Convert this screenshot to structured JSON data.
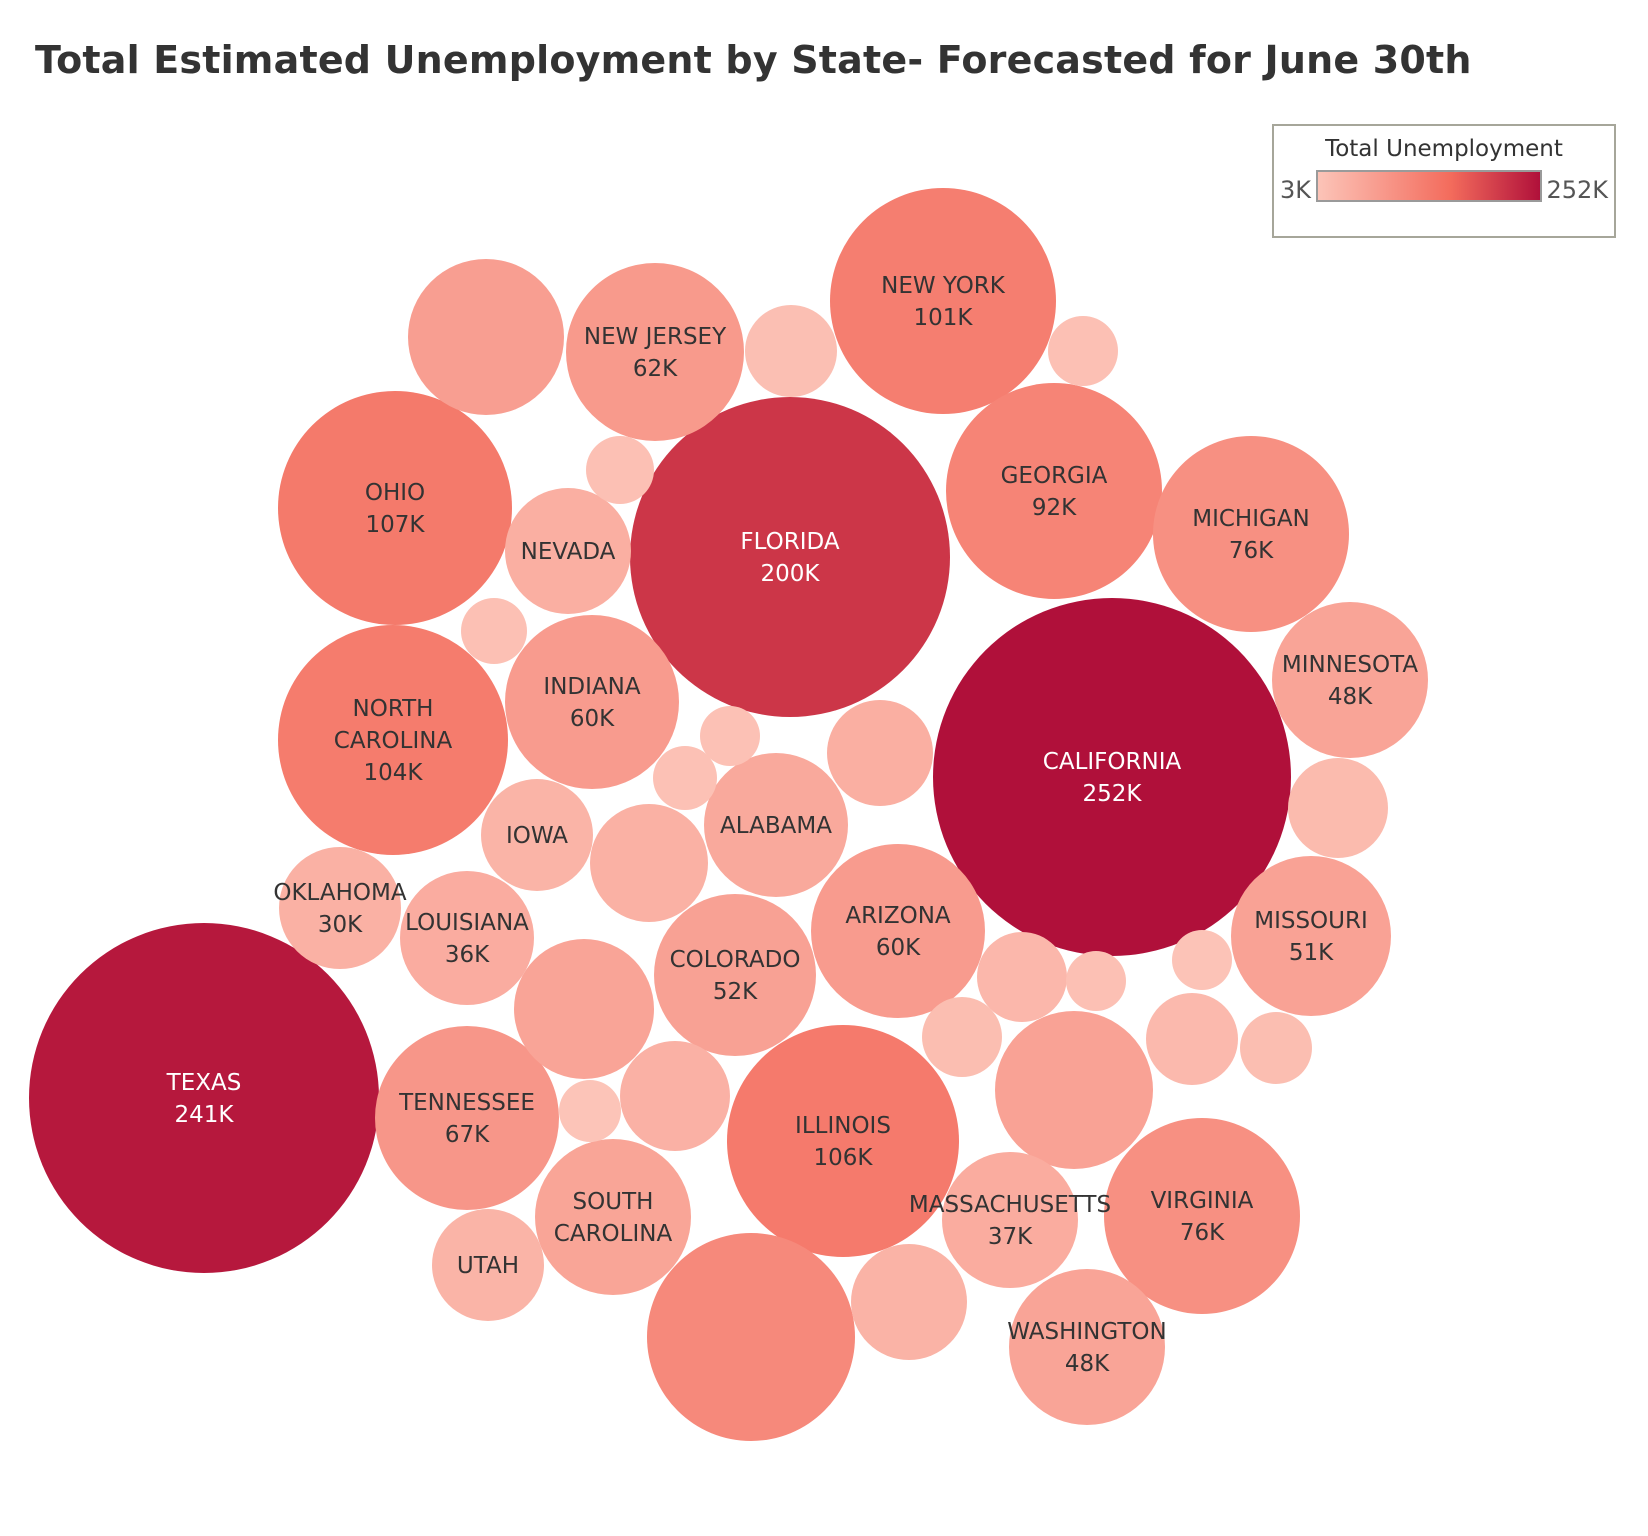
{
  "chart_data": {
    "type": "bubble",
    "title": "Total Estimated Unemployment by State- Forecasted for June 30th",
    "legend": {
      "title": "Total Unemployment",
      "min_label": "3K",
      "max_label": "252K",
      "min_value": 3,
      "max_value": 252,
      "color_low": "#fcc4b8",
      "color_mid": "#f36b5c",
      "color_high": "#b0103a",
      "placement": "top-right"
    },
    "unit": "K",
    "bubbles": [
      {
        "label": [
          "CALIFORNIA"
        ],
        "value": 252,
        "value_label": "252K"
      },
      {
        "label": [
          "TEXAS"
        ],
        "value": 241,
        "value_label": "241K"
      },
      {
        "label": [
          "FLORIDA"
        ],
        "value": 200,
        "value_label": "200K"
      },
      {
        "label": [
          "OHIO"
        ],
        "value": 107,
        "value_label": "107K"
      },
      {
        "label": [
          "ILLINOIS"
        ],
        "value": 106,
        "value_label": "106K"
      },
      {
        "label": [
          "NORTH",
          "CAROLINA"
        ],
        "value": 104,
        "value_label": "104K"
      },
      {
        "label": [
          "NEW YORK"
        ],
        "value": 101,
        "value_label": "101K"
      },
      {
        "label": [
          "GEORGIA"
        ],
        "value": 92,
        "value_label": "92K"
      },
      {
        "label": [],
        "value": 85,
        "value_label": ""
      },
      {
        "label": [
          "MICHIGAN"
        ],
        "value": 76,
        "value_label": "76K"
      },
      {
        "label": [
          "VIRGINIA"
        ],
        "value": 76,
        "value_label": "76K"
      },
      {
        "label": [
          "TENNESSEE"
        ],
        "value": 67,
        "value_label": "67K"
      },
      {
        "label": [
          "NEW JERSEY"
        ],
        "value": 62,
        "value_label": "62K"
      },
      {
        "label": [
          "INDIANA"
        ],
        "value": 60,
        "value_label": "60K"
      },
      {
        "label": [
          "ARIZONA"
        ],
        "value": 60,
        "value_label": "60K"
      },
      {
        "label": [],
        "value": 56,
        "value_label": ""
      },
      {
        "label": [
          "COLORADO"
        ],
        "value": 52,
        "value_label": "52K"
      },
      {
        "label": [
          "MISSOURI"
        ],
        "value": 51,
        "value_label": "51K"
      },
      {
        "label": [],
        "value": 50,
        "value_label": ""
      },
      {
        "label": [],
        "value": 48,
        "value_label": ""
      },
      {
        "label": [
          "MINNESOTA"
        ],
        "value": 48,
        "value_label": "48K"
      },
      {
        "label": [
          "WASHINGTON"
        ],
        "value": 48,
        "value_label": "48K"
      },
      {
        "label": [
          "SOUTH",
          "CAROLINA"
        ],
        "value": 47,
        "value_label": ""
      },
      {
        "label": [
          "ALABAMA"
        ],
        "value": 41,
        "value_label": ""
      },
      {
        "label": [
          "MASSACHUSETTS"
        ],
        "value": 37,
        "value_label": "37K"
      },
      {
        "label": [
          "LOUISIANA"
        ],
        "value": 36,
        "value_label": "36K"
      },
      {
        "label": [
          "NEVADA"
        ],
        "value": 33,
        "value_label": ""
      },
      {
        "label": [],
        "value": 33,
        "value_label": ""
      },
      {
        "label": [],
        "value": 30,
        "value_label": ""
      },
      {
        "label": [
          "OKLAHOMA"
        ],
        "value": 30,
        "value_label": "30K"
      },
      {
        "label": [],
        "value": 29,
        "value_label": ""
      },
      {
        "label": [],
        "value": 27,
        "value_label": ""
      },
      {
        "label": [
          "IOWA"
        ],
        "value": 26,
        "value_label": ""
      },
      {
        "label": [
          "UTAH"
        ],
        "value": 26,
        "value_label": ""
      },
      {
        "label": [],
        "value": 21,
        "value_label": ""
      },
      {
        "label": [],
        "value": 18,
        "value_label": ""
      },
      {
        "label": [],
        "value": 16,
        "value_label": ""
      },
      {
        "label": [],
        "value": 12,
        "value_label": ""
      },
      {
        "label": [],
        "value": 12,
        "value_label": ""
      },
      {
        "label": [],
        "value": 10,
        "value_label": ""
      },
      {
        "label": [],
        "value": 9,
        "value_label": ""
      },
      {
        "label": [],
        "value": 8,
        "value_label": ""
      },
      {
        "label": [],
        "value": 8,
        "value_label": ""
      },
      {
        "label": [],
        "value": 8,
        "value_label": ""
      },
      {
        "label": [],
        "value": 7,
        "value_label": ""
      },
      {
        "label": [],
        "value": 7,
        "value_label": ""
      },
      {
        "label": [],
        "value": 4,
        "value_label": ""
      },
      {
        "label": [],
        "value": 3,
        "value_label": ""
      }
    ]
  }
}
